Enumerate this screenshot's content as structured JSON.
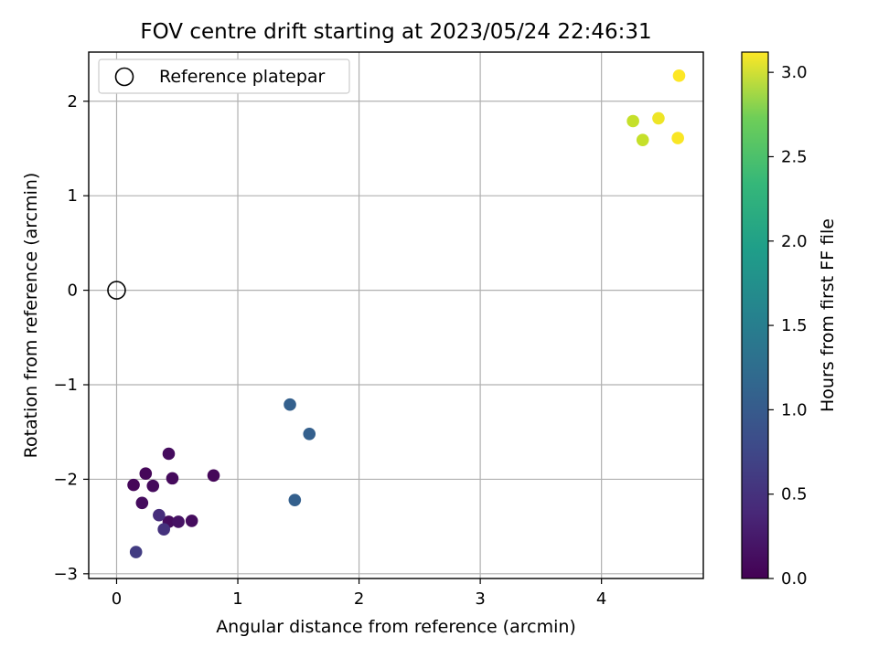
{
  "chart_data": {
    "type": "scatter",
    "title": "FOV centre drift starting at 2023/05/24 22:46:31",
    "xlabel": "Angular distance from reference (arcmin)",
    "ylabel": "Rotation from reference (arcmin)",
    "xlim": [
      -0.23,
      4.84
    ],
    "ylim": [
      -3.05,
      2.52
    ],
    "xticks": [
      0,
      1,
      2,
      3,
      4
    ],
    "yticks": [
      -3,
      -2,
      -1,
      0,
      1,
      2
    ],
    "xtick_labels": [
      "0",
      "1",
      "2",
      "3",
      "4"
    ],
    "ytick_labels": [
      "−3",
      "−2",
      "−1",
      "0",
      "1",
      "2"
    ],
    "grid": true,
    "legend": {
      "placement": "top-left",
      "entries": [
        "Reference platepar"
      ]
    },
    "reference_point": {
      "x": 0,
      "y": 0,
      "name": "Reference platepar"
    },
    "colorbar": {
      "label": "Hours from first FF file",
      "range": [
        0.0,
        3.12
      ],
      "ticks": [
        0.0,
        0.5,
        1.0,
        1.5,
        2.0,
        2.5,
        3.0
      ],
      "tick_labels": [
        "0.0",
        "0.5",
        "1.0",
        "1.5",
        "2.0",
        "2.5",
        "3.0"
      ],
      "colormap": "viridis"
    },
    "points": [
      {
        "x": 0.14,
        "y": -2.06,
        "hours": 0.05
      },
      {
        "x": 0.24,
        "y": -1.94,
        "hours": 0.05
      },
      {
        "x": 0.3,
        "y": -2.07,
        "hours": 0.08
      },
      {
        "x": 0.21,
        "y": -2.25,
        "hours": 0.1
      },
      {
        "x": 0.43,
        "y": -1.73,
        "hours": 0.1
      },
      {
        "x": 0.46,
        "y": -1.99,
        "hours": 0.08
      },
      {
        "x": 0.8,
        "y": -1.96,
        "hours": 0.05
      },
      {
        "x": 0.43,
        "y": -2.45,
        "hours": 0.1
      },
      {
        "x": 0.51,
        "y": -2.45,
        "hours": 0.15
      },
      {
        "x": 0.62,
        "y": -2.44,
        "hours": 0.1
      },
      {
        "x": 0.35,
        "y": -2.38,
        "hours": 0.4
      },
      {
        "x": 0.39,
        "y": -2.53,
        "hours": 0.45
      },
      {
        "x": 0.16,
        "y": -2.77,
        "hours": 0.55
      },
      {
        "x": 1.43,
        "y": -1.21,
        "hours": 0.95
      },
      {
        "x": 1.59,
        "y": -1.52,
        "hours": 0.95
      },
      {
        "x": 1.47,
        "y": -2.22,
        "hours": 0.95
      },
      {
        "x": 4.26,
        "y": 1.79,
        "hours": 2.85
      },
      {
        "x": 4.34,
        "y": 1.59,
        "hours": 2.85
      },
      {
        "x": 4.47,
        "y": 1.82,
        "hours": 3.05
      },
      {
        "x": 4.63,
        "y": 1.61,
        "hours": 3.1
      },
      {
        "x": 4.64,
        "y": 2.27,
        "hours": 3.12
      }
    ]
  }
}
